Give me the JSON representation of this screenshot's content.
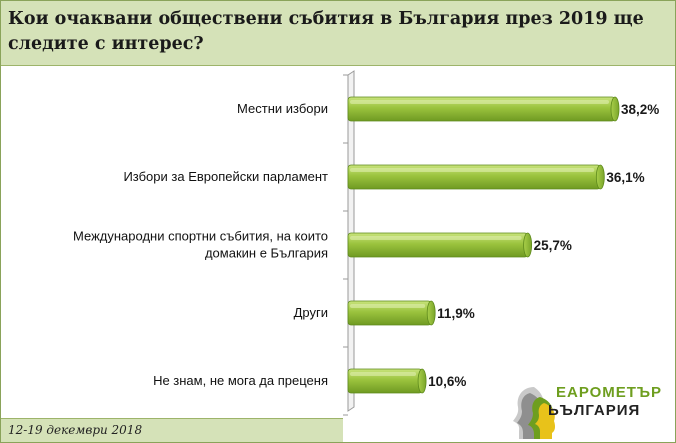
{
  "title": "Кои очаквани обществени събития в България през 2019 ще следите с интерес?",
  "footer": {
    "date": "12-19 декември 2018"
  },
  "logo": {
    "line1": "ЕАРОМЕТЪР",
    "line2": "ЬЪЛГАРИЯ"
  },
  "colors": {
    "bar_fill": "#9bc33e",
    "bar_edge": "#5e8a1c",
    "title_band": "#d5e2b8"
  },
  "chart_data": {
    "type": "bar",
    "orientation": "horizontal",
    "categories": [
      [
        "Местни избори"
      ],
      [
        "Избори за Европейски парламент"
      ],
      [
        "Международни спортни събития, на които",
        "домакин е България"
      ],
      [
        "Други"
      ],
      [
        "Не знам, не мога да преценя"
      ]
    ],
    "values": [
      38.2,
      36.1,
      25.7,
      11.9,
      10.6
    ],
    "value_labels": [
      "38,2%",
      "36,1%",
      "25,7%",
      "11,9%",
      "10,6%"
    ],
    "xlim": [
      0,
      40
    ],
    "grid": false,
    "legend": "none"
  }
}
